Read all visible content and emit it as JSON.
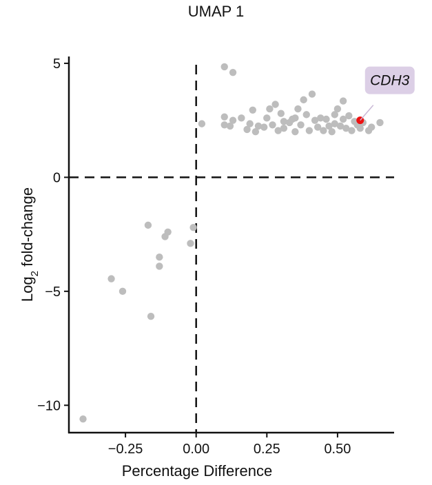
{
  "chart_data": {
    "type": "scatter",
    "title": "UMAP 1",
    "xlabel": "Percentage Difference",
    "ylabel_main": "Log",
    "ylabel_sub": "2",
    "ylabel_rest": " fold-change",
    "xlim": [
      -0.45,
      0.7
    ],
    "ylim": [
      -11.2,
      5.3
    ],
    "xticks": [
      -0.25,
      0.0,
      0.25,
      0.5
    ],
    "xtick_labels": [
      "−0.25",
      "0.00",
      "0.25",
      "0.50"
    ],
    "yticks": [
      5,
      0,
      -5,
      -10
    ],
    "ytick_labels": [
      "5",
      "0",
      "−5",
      "−10"
    ],
    "reference_lines": {
      "x": 0,
      "y": 0,
      "style": "dashed"
    },
    "grid": false,
    "point_color": "#bdbdbd",
    "highlight_color": "#ee1111",
    "annotation_bg": "#dccfe6",
    "highlight": {
      "label": "CDH3",
      "x": 0.58,
      "y": 2.5
    },
    "points": [
      [
        0.1,
        4.85
      ],
      [
        0.13,
        4.6
      ],
      [
        0.02,
        2.35
      ],
      [
        0.1,
        2.3
      ],
      [
        0.12,
        2.25
      ],
      [
        0.1,
        2.65
      ],
      [
        0.13,
        2.5
      ],
      [
        0.16,
        2.6
      ],
      [
        0.18,
        2.1
      ],
      [
        0.19,
        2.35
      ],
      [
        0.2,
        2.95
      ],
      [
        0.21,
        2.0
      ],
      [
        0.22,
        2.25
      ],
      [
        0.24,
        2.2
      ],
      [
        0.25,
        2.6
      ],
      [
        0.26,
        3.0
      ],
      [
        0.27,
        2.3
      ],
      [
        0.28,
        3.2
      ],
      [
        0.29,
        2.05
      ],
      [
        0.3,
        2.8
      ],
      [
        0.31,
        2.15
      ],
      [
        0.33,
        2.4
      ],
      [
        0.34,
        2.55
      ],
      [
        0.35,
        2.6
      ],
      [
        0.35,
        2.0
      ],
      [
        0.36,
        3.0
      ],
      [
        0.37,
        2.3
      ],
      [
        0.38,
        3.4
      ],
      [
        0.39,
        2.75
      ],
      [
        0.4,
        2.05
      ],
      [
        0.41,
        3.65
      ],
      [
        0.42,
        2.5
      ],
      [
        0.43,
        2.2
      ],
      [
        0.44,
        2.6
      ],
      [
        0.45,
        2.05
      ],
      [
        0.46,
        2.55
      ],
      [
        0.47,
        2.25
      ],
      [
        0.48,
        2.0
      ],
      [
        0.49,
        2.35
      ],
      [
        0.5,
        3.0
      ],
      [
        0.51,
        2.25
      ],
      [
        0.52,
        2.55
      ],
      [
        0.53,
        2.15
      ],
      [
        0.54,
        2.7
      ],
      [
        0.55,
        2.05
      ],
      [
        0.56,
        2.45
      ],
      [
        0.57,
        2.3
      ],
      [
        0.58,
        2.15
      ],
      [
        0.59,
        2.4
      ],
      [
        0.61,
        2.05
      ],
      [
        0.62,
        2.2
      ],
      [
        0.65,
        2.4
      ],
      [
        0.49,
        2.75
      ],
      [
        0.52,
        3.35
      ],
      [
        0.31,
        2.45
      ],
      [
        -0.01,
        -2.2
      ],
      [
        -0.02,
        -2.9
      ],
      [
        -0.1,
        -2.4
      ],
      [
        -0.11,
        -2.6
      ],
      [
        -0.13,
        -3.5
      ],
      [
        -0.13,
        -3.9
      ],
      [
        -0.17,
        -2.1
      ],
      [
        -0.16,
        -6.1
      ],
      [
        -0.3,
        -4.45
      ],
      [
        -0.26,
        -5.0
      ],
      [
        -0.4,
        -10.6
      ]
    ]
  }
}
